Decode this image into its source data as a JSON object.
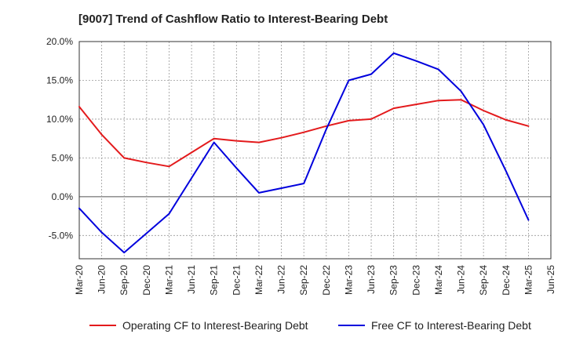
{
  "chart_data": {
    "type": "line",
    "title": "[9007]  Trend of Cashflow Ratio to Interest-Bearing Debt",
    "xlabel": "",
    "ylabel": "",
    "categories": [
      "Mar-20",
      "Jun-20",
      "Sep-20",
      "Dec-20",
      "Mar-21",
      "Jun-21",
      "Sep-21",
      "Dec-21",
      "Mar-22",
      "Jun-22",
      "Sep-22",
      "Dec-22",
      "Mar-23",
      "Jun-23",
      "Sep-23",
      "Dec-23",
      "Mar-24",
      "Jun-24",
      "Sep-24",
      "Dec-24",
      "Mar-25",
      "Jun-25"
    ],
    "ylim": [
      -8.0,
      20.0
    ],
    "yticks": [
      -5.0,
      0.0,
      5.0,
      10.0,
      15.0,
      20.0
    ],
    "ytick_labels": [
      "-5.0%",
      "0.0%",
      "5.0%",
      "10.0%",
      "15.0%",
      "20.0%"
    ],
    "grid": true,
    "legend_position": "bottom",
    "series": [
      {
        "name": "Operating CF to Interest-Bearing Debt",
        "color": "#e31a1c",
        "values": [
          11.6,
          8.0,
          5.0,
          4.4,
          3.9,
          5.7,
          7.5,
          7.2,
          7.0,
          7.6,
          8.3,
          9.1,
          9.8,
          10.0,
          11.4,
          11.9,
          12.4,
          12.5,
          11.1,
          9.9,
          9.1,
          null
        ]
      },
      {
        "name": "Free CF to Interest-Bearing Debt",
        "color": "#0000dd",
        "values": [
          -1.5,
          -4.6,
          -7.2,
          -4.7,
          -2.2,
          2.4,
          7.0,
          3.7,
          0.5,
          1.1,
          1.7,
          8.7,
          15.0,
          15.8,
          18.5,
          17.5,
          16.4,
          13.6,
          9.3,
          3.3,
          -3.0,
          null
        ]
      }
    ]
  }
}
